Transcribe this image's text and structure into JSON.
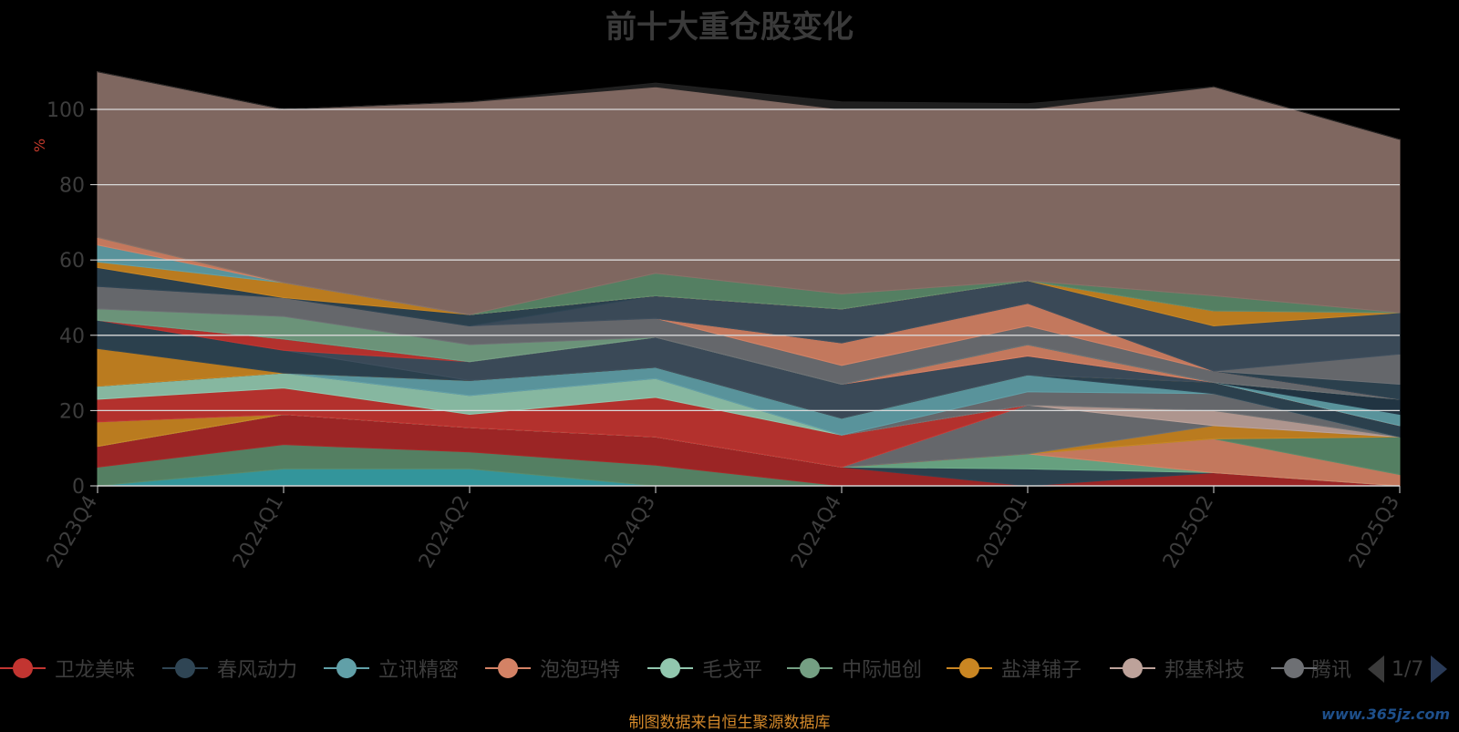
{
  "title": "前十大重仓股变化",
  "unit_label": "%",
  "source": "制图数据来自恒生聚源数据库",
  "watermark": "www.365jz.com",
  "pager": {
    "text": "1/7"
  },
  "colors": {
    "background": "#000000",
    "grid": "#d9d9d9",
    "axis_text": "#3d3d3d",
    "title": "#3a3a3a",
    "unit": "#c0392b",
    "source": "#d4892a"
  },
  "legend": [
    {
      "name": "卫龙美味",
      "color": "#c23531"
    },
    {
      "name": "春风动力",
      "color": "#2f4554"
    },
    {
      "name": "立讯精密",
      "color": "#61a0a8"
    },
    {
      "name": "泡泡玛特",
      "color": "#d48265"
    },
    {
      "name": "毛戈平",
      "color": "#91c7ae"
    },
    {
      "name": "中际旭创",
      "color": "#749f83"
    },
    {
      "name": "盐津铺子",
      "color": "#ca8622"
    },
    {
      "name": "邦基科技",
      "color": "#bda29a"
    },
    {
      "name": "腾讯",
      "color": "#6e7074"
    }
  ],
  "chart_data": {
    "type": "area",
    "stacked": true,
    "title": "前十大重仓股变化",
    "ylabel": "%",
    "ylim": [
      0,
      100
    ],
    "yticks": [
      0,
      20,
      40,
      60,
      80,
      100
    ],
    "grid": true,
    "legend_position": "bottom",
    "categories": [
      "2023Q4",
      "2024Q1",
      "2024Q2",
      "2024Q3",
      "2024Q4",
      "2025Q1",
      "2025Q2",
      "2025Q3"
    ],
    "series": [
      {
        "color": "#37a2a8",
        "values": [
          0,
          4.5,
          4.5,
          0,
          0,
          0,
          0,
          0
        ]
      },
      {
        "color": "#5b8a6a",
        "values": [
          5,
          6.5,
          4.5,
          5.5,
          0,
          0,
          0,
          0
        ]
      },
      {
        "color": "#a82828",
        "values": [
          5.5,
          8,
          6.5,
          7.5,
          5,
          0,
          3.5,
          0
        ]
      },
      {
        "color": "#2f4554",
        "values": [
          0,
          0,
          0,
          0,
          0,
          4.5,
          0,
          0
        ]
      },
      {
        "color": "#6fae8a",
        "values": [
          0,
          0,
          0,
          0,
          0,
          4,
          0,
          0
        ]
      },
      {
        "color": "#d48265",
        "values": [
          0,
          0,
          0,
          0,
          0,
          0,
          9,
          3
        ]
      },
      {
        "color": "#5b8a6a",
        "values": [
          0,
          0,
          0,
          0,
          0,
          0,
          0,
          10
        ]
      },
      {
        "color": "#ca8622",
        "values": [
          6.5,
          0,
          0,
          0,
          0,
          0,
          3.5,
          0
        ]
      },
      {
        "color": "#6e7074",
        "values": [
          0,
          0,
          0,
          0,
          0,
          13,
          0,
          0
        ]
      },
      {
        "color": "#bda29a",
        "values": [
          0,
          0,
          0,
          0,
          0,
          0,
          4,
          0
        ]
      },
      {
        "color": "#c23531",
        "values": [
          6,
          7,
          3.5,
          10.5,
          8.5,
          0,
          0,
          0
        ]
      },
      {
        "color": "#91c7ae",
        "values": [
          3.5,
          4,
          5,
          5,
          0,
          0,
          0,
          0
        ]
      },
      {
        "color": "#6e7074",
        "values": [
          0,
          0,
          0,
          0,
          0,
          3.5,
          4.5,
          0
        ]
      },
      {
        "color": "#61a0a8",
        "values": [
          0,
          0,
          4,
          3,
          4.5,
          4.5,
          0,
          0
        ]
      },
      {
        "color": "#2f4554",
        "values": [
          0,
          0,
          0,
          0,
          0,
          0,
          3,
          3
        ]
      },
      {
        "color": "#ca8622",
        "values": [
          10,
          0,
          0,
          0,
          0,
          0,
          0,
          0
        ]
      },
      {
        "color": "#2f4554",
        "values": [
          7.5,
          6,
          0,
          0,
          0,
          0,
          0,
          0
        ]
      },
      {
        "color": "#3f4f5e",
        "values": [
          0,
          0,
          5,
          8,
          9,
          5,
          0,
          0
        ]
      },
      {
        "color": "#c23531",
        "values": [
          0,
          3,
          0,
          0,
          0,
          0,
          0,
          0
        ]
      },
      {
        "color": "#d48265",
        "values": [
          0,
          0,
          0,
          0,
          0,
          3,
          0,
          0
        ]
      },
      {
        "color": "#61a0a8",
        "values": [
          0,
          0,
          0,
          0,
          0,
          0,
          0,
          3
        ]
      },
      {
        "color": "#243848",
        "values": [
          0,
          0,
          0,
          0,
          0,
          0,
          0,
          4
        ]
      },
      {
        "color": "#749f83",
        "values": [
          3,
          6,
          4.5,
          0,
          0,
          0,
          0,
          0
        ]
      },
      {
        "color": "#6e7074",
        "values": [
          6,
          5,
          5,
          5,
          5,
          5,
          3,
          0
        ]
      },
      {
        "color": "#d48265",
        "values": [
          0,
          0,
          0,
          0,
          6,
          6,
          0,
          0
        ]
      },
      {
        "color": "#2f4554",
        "values": [
          0,
          0,
          0,
          0,
          0,
          0,
          0,
          4
        ]
      },
      {
        "color": "#6e7074",
        "values": [
          0,
          0,
          0,
          0,
          0,
          0,
          0,
          8
        ]
      },
      {
        "color": "#3f4f5e",
        "values": [
          0,
          0,
          0,
          6,
          9,
          6,
          12,
          11
        ]
      },
      {
        "color": "#2f4554",
        "values": [
          5,
          0,
          3,
          0,
          0,
          0,
          0,
          0
        ]
      },
      {
        "color": "#ca8622",
        "values": [
          1.5,
          4,
          0,
          0,
          0,
          0,
          4,
          0
        ]
      },
      {
        "color": "#61a0a8",
        "values": [
          4.5,
          0,
          0,
          0,
          0,
          0,
          0,
          0
        ]
      },
      {
        "color": "#d48265",
        "values": [
          2,
          0,
          0,
          0,
          0,
          0,
          0,
          0
        ]
      },
      {
        "color": "#5b8a6a",
        "values": [
          0,
          0,
          0,
          6,
          4,
          0,
          4,
          0
        ]
      },
      {
        "color": "#8a7068",
        "values": [
          44,
          46,
          56.5,
          49.5,
          49,
          45.5,
          55.5,
          46
        ]
      },
      {
        "color": "#222222",
        "values": [
          0,
          0,
          0,
          1,
          2,
          1.5,
          0,
          0
        ]
      }
    ]
  }
}
